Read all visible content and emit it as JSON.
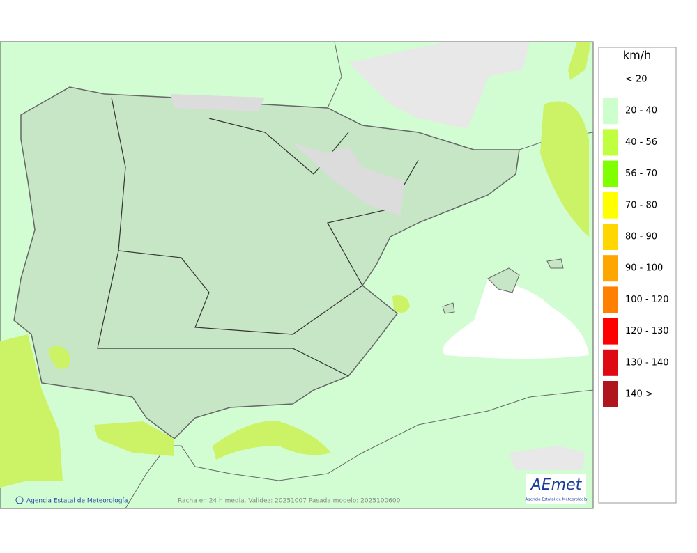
{
  "map": {
    "footer": {
      "credit": "Agencia Estatal de Meteorología",
      "caption": "Racha en 24 h media. Validez: 20251007 Pasada modelo: 2025100600"
    },
    "logo": {
      "name": "AEmet",
      "subtitle": "Agencia Estatal de Meteorología"
    },
    "legend": {
      "title": "km/h",
      "items": [
        {
          "label": "< 20",
          "color": "#ffffff"
        },
        {
          "label": "20 - 40",
          "color": "#ccffcc"
        },
        {
          "label": "40 - 56",
          "color": "#bfff3f"
        },
        {
          "label": "56 - 70",
          "color": "#7fff00"
        },
        {
          "label": "70 - 80",
          "color": "#ffff00"
        },
        {
          "label": "80 - 90",
          "color": "#ffd700"
        },
        {
          "label": "90 - 100",
          "color": "#ffa500"
        },
        {
          "label": "100 - 120",
          "color": "#ff8000"
        },
        {
          "label": "120 - 130",
          "color": "#ff0000"
        },
        {
          "label": "130 - 140",
          "color": "#dd0a14"
        },
        {
          "label": "140 >",
          "color": "#b0141e"
        }
      ]
    }
  }
}
